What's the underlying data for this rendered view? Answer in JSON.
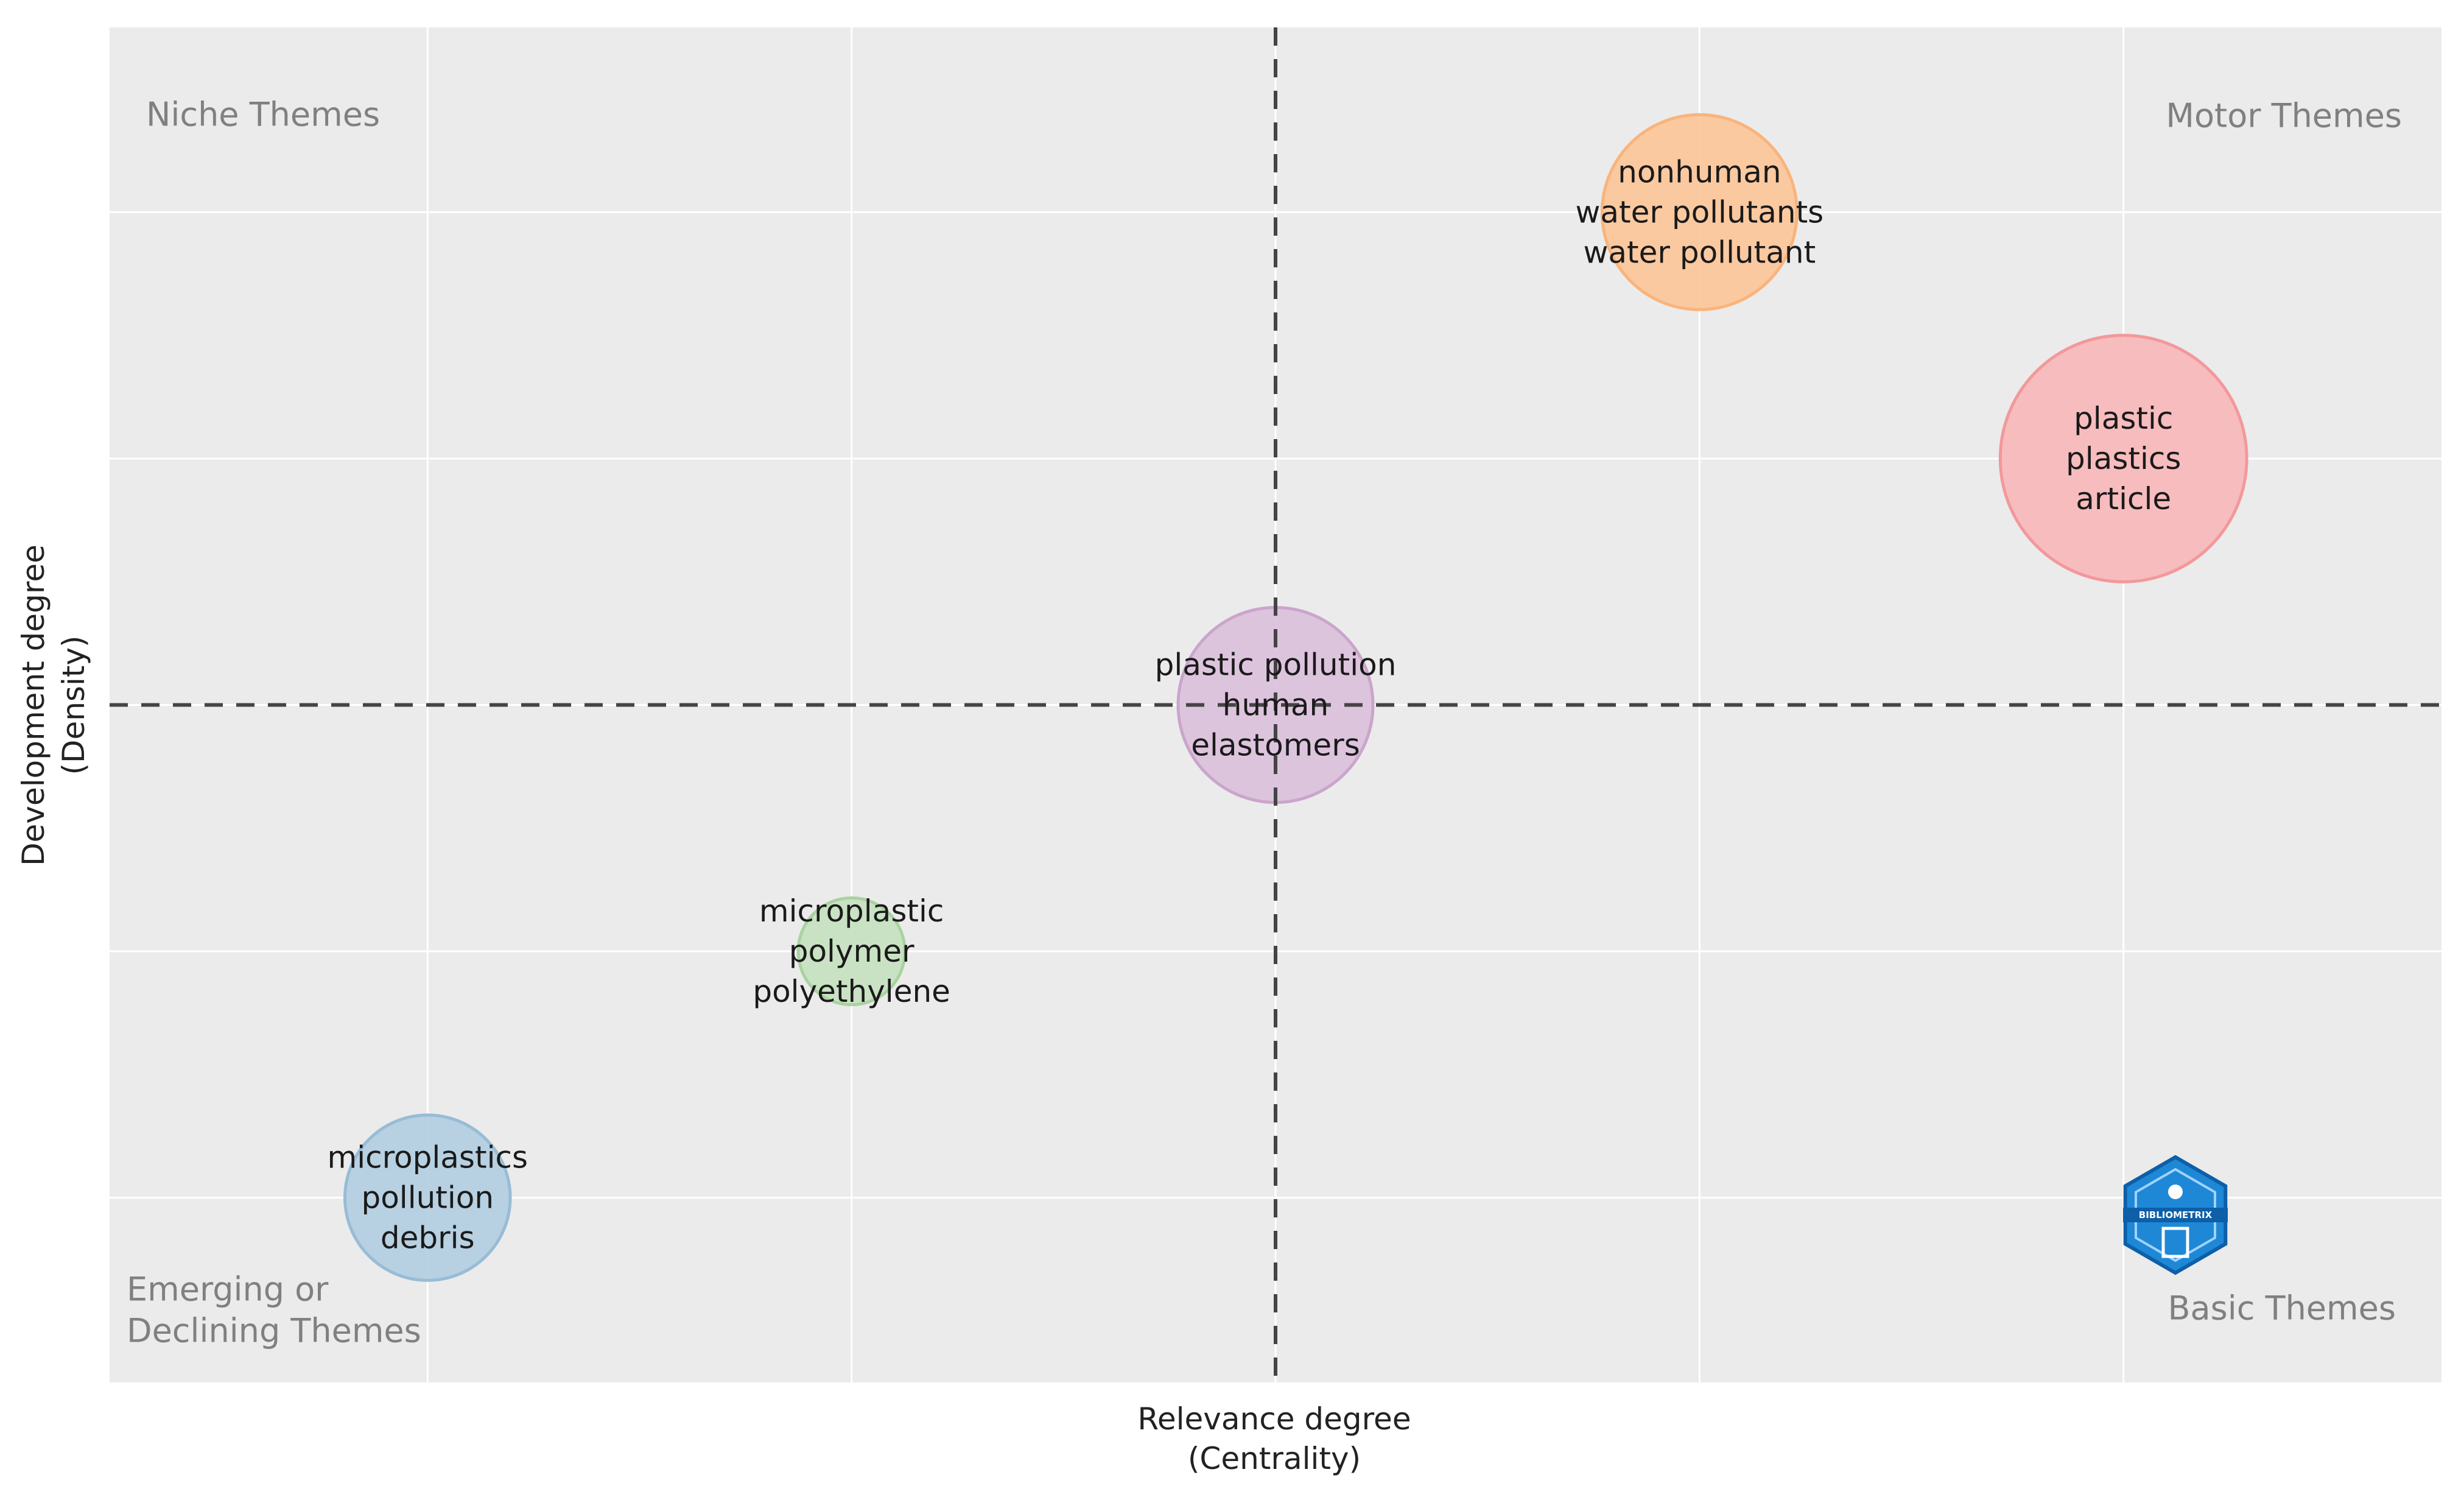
{
  "chart_data": {
    "type": "scatter",
    "subtype": "bubble",
    "title": "",
    "xlabel": [
      "Relevance degree",
      "(Centrality)"
    ],
    "ylabel": [
      "Development degree",
      "(Density)"
    ],
    "grid": true,
    "xlim": [
      0,
      5.5
    ],
    "ylim": [
      -0.75,
      4.75
    ],
    "x_reference_line": 2.75,
    "y_reference_line": 2,
    "quadrant_labels": {
      "top_left": [
        "Niche Themes"
      ],
      "top_right": [
        "Motor Themes"
      ],
      "bottom_left": [
        "Emerging or",
        "Declining Themes"
      ],
      "bottom_right": [
        "Basic Themes"
      ]
    },
    "clusters": [
      {
        "x": 3.75,
        "y": 4.0,
        "size": 1.0,
        "color": "#fcc79c",
        "edge": "#f9b47c",
        "labels": [
          "nonhuman",
          "water pollutants",
          "water pollutant"
        ]
      },
      {
        "x": 4.75,
        "y": 3.0,
        "size": 1.6,
        "color": "#f8b9bc",
        "edge": "#f3989b",
        "labels": [
          "plastic",
          "plastics",
          "article"
        ]
      },
      {
        "x": 2.75,
        "y": 2.0,
        "size": 1.0,
        "color": "#dcc2dc",
        "edge": "#caa5cb",
        "labels": [
          "plastic pollution",
          "human",
          "elastomers"
        ]
      },
      {
        "x": 1.75,
        "y": 1.0,
        "size": 0.3,
        "color": "#c8e1c2",
        "edge": "#a9d2a0",
        "labels": [
          "microplastic",
          "polymer",
          "polyethylene"
        ]
      },
      {
        "x": 0.75,
        "y": 0.0,
        "size": 0.72,
        "color": "#b4cfe2",
        "edge": "#98bcd6",
        "labels": [
          "microplastics",
          "pollution",
          "debris"
        ]
      }
    ]
  },
  "watermark": {
    "name": "bibliometrix-logo",
    "text": "BIBLIOMETRIX",
    "color": "#1e88d6"
  }
}
